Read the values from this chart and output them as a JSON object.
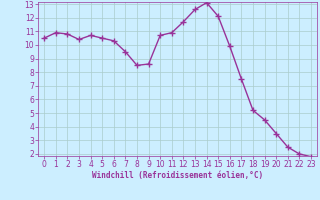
{
  "x": [
    0,
    1,
    2,
    3,
    4,
    5,
    6,
    7,
    8,
    9,
    10,
    11,
    12,
    13,
    14,
    15,
    16,
    17,
    18,
    19,
    20,
    21,
    22,
    23
  ],
  "y": [
    10.5,
    10.9,
    10.8,
    10.4,
    10.7,
    10.5,
    10.3,
    9.5,
    8.5,
    8.6,
    10.7,
    10.9,
    11.7,
    12.6,
    13.1,
    12.1,
    9.9,
    7.5,
    5.2,
    4.5,
    3.5,
    2.5,
    2.0,
    1.8
  ],
  "line_color": "#993399",
  "marker": "+",
  "marker_size": 4,
  "bg_color": "#cceeff",
  "grid_color": "#aacccc",
  "xlabel": "Windchill (Refroidissement éolien,°C)",
  "xlabel_color": "#993399",
  "tick_color": "#993399",
  "ylim_min": 2,
  "ylim_max": 13,
  "xlim_min": 0,
  "xlim_max": 23,
  "yticks": [
    2,
    3,
    4,
    5,
    6,
    7,
    8,
    9,
    10,
    11,
    12,
    13
  ],
  "xticks": [
    0,
    1,
    2,
    3,
    4,
    5,
    6,
    7,
    8,
    9,
    10,
    11,
    12,
    13,
    14,
    15,
    16,
    17,
    18,
    19,
    20,
    21,
    22,
    23
  ],
  "line_width": 1.0,
  "tick_fontsize": 5.5,
  "xlabel_fontsize": 5.5
}
